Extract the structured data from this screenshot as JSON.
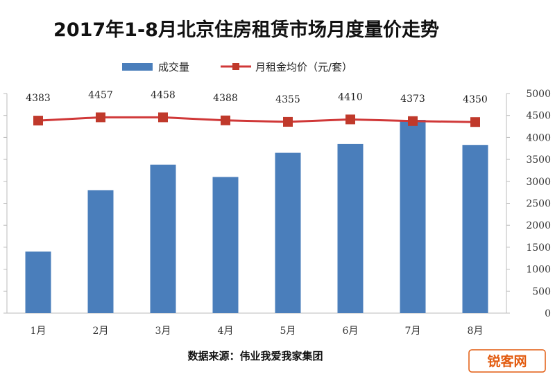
{
  "chart_data": {
    "type": "bar",
    "title": "2017年1-8月北京住房租赁市场月度量价走势",
    "categories": [
      "1月",
      "2月",
      "3月",
      "4月",
      "5月",
      "6月",
      "7月",
      "8月"
    ],
    "series": [
      {
        "name": "成交量",
        "type": "bar",
        "axis": "right",
        "color": "#4a7ebb",
        "values": [
          1400,
          2800,
          3380,
          3100,
          3650,
          3850,
          4400,
          3830
        ]
      },
      {
        "name": "月租金均价（元/套）",
        "type": "line",
        "axis": "right",
        "color": "#d03838",
        "values": [
          4383,
          4457,
          4458,
          4388,
          4355,
          4410,
          4373,
          4350
        ],
        "data_labels": [
          "4383",
          "4457",
          "4458",
          "4388",
          "4355",
          "4410",
          "4373",
          "4350"
        ]
      }
    ],
    "y_axis_right": {
      "min": 0,
      "max": 5000,
      "ticks": [
        "0",
        "500",
        "1000",
        "1500",
        "2000",
        "2500",
        "3000",
        "3500",
        "4000",
        "4500",
        "5000"
      ]
    },
    "grid": false,
    "legend_position": "top"
  },
  "source_text": "数据来源：伟业我爱我家集团",
  "watermark": "锐客网"
}
